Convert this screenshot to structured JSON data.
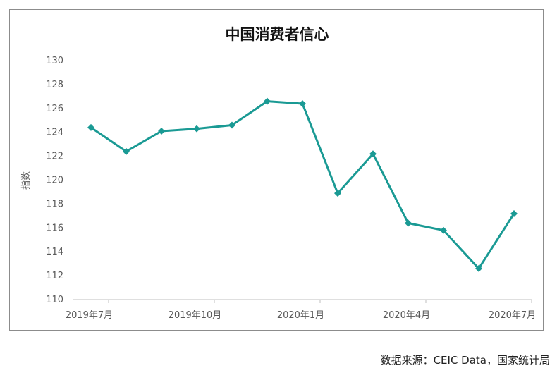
{
  "source": "数据来源：CEIC Data，国家统计局",
  "chart_data": {
    "type": "line",
    "title": "中国消费者信心",
    "xlabel": "",
    "ylabel": "指数",
    "ylim": [
      110,
      130
    ],
    "yticks": [
      110,
      112,
      114,
      116,
      118,
      120,
      122,
      124,
      126,
      128,
      130
    ],
    "xtick_labels": [
      "2019年7月",
      "2019年10月",
      "2020年1月",
      "2020年4月",
      "2020年7月"
    ],
    "x": [
      "2019-07",
      "2019-08",
      "2019-09",
      "2019-10",
      "2019-11",
      "2019-12",
      "2020-01",
      "2020-02",
      "2020-03",
      "2020-04",
      "2020-05",
      "2020-06",
      "2020-07"
    ],
    "series": [
      {
        "values": [
          124.4,
          122.4,
          124.1,
          124.3,
          124.6,
          126.6,
          126.4,
          118.9,
          122.2,
          116.4,
          115.8,
          112.6,
          117.2
        ]
      }
    ],
    "grid": false,
    "legend": "none",
    "line_color": "#1a9a94",
    "marker": "diamond"
  }
}
